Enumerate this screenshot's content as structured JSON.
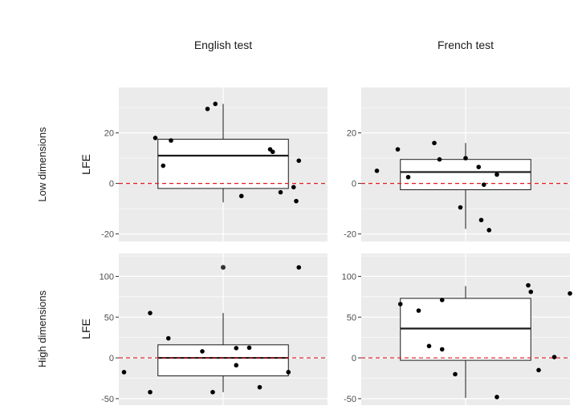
{
  "figure": {
    "col_titles": [
      "English test",
      "French test"
    ],
    "row_titles": [
      "Low dimensions",
      "High dimensions"
    ]
  },
  "colors": {
    "panel_bg": "#ebebeb",
    "grid": "#ffffff",
    "reference_line": "#e31a1c",
    "box_fill": "#ffffff",
    "box_stroke": "#1a1a1a",
    "point": "#000000",
    "outlier": "#333333"
  },
  "chart_data": [
    {
      "type": "boxplot",
      "panel": "English test / Low dimensions",
      "ylabel": "LFE",
      "ylim": [
        -23,
        38
      ],
      "yticks": [
        -20,
        0,
        20
      ],
      "reference_line": 0,
      "box": {
        "q1": -2,
        "median": 11,
        "q3": 17.5,
        "whisker_low": -7.5,
        "whisker_high": 31.5
      },
      "points": [
        {
          "x": 0.74,
          "y": 18
        },
        {
          "x": 0.77,
          "y": 7
        },
        {
          "x": 0.8,
          "y": 17
        },
        {
          "x": 0.94,
          "y": 29.5
        },
        {
          "x": 0.97,
          "y": 31.5
        },
        {
          "x": 1.07,
          "y": -5
        },
        {
          "x": 1.18,
          "y": 13.5
        },
        {
          "x": 1.19,
          "y": 12.5
        },
        {
          "x": 1.22,
          "y": -3.5
        },
        {
          "x": 1.27,
          "y": -1.5
        },
        {
          "x": 1.28,
          "y": -7
        },
        {
          "x": 1.29,
          "y": 9
        }
      ],
      "outliers": [],
      "grid": true
    },
    {
      "type": "boxplot",
      "panel": "French test / Low dimensions",
      "ylabel": "",
      "ylim": [
        -23,
        38
      ],
      "yticks": [
        -20,
        0,
        20
      ],
      "reference_line": 0,
      "box": {
        "q1": -2.5,
        "median": 4.5,
        "q3": 9.5,
        "whisker_low": -18,
        "whisker_high": 16
      },
      "points": [
        {
          "x": 0.66,
          "y": 5
        },
        {
          "x": 0.74,
          "y": 13.5
        },
        {
          "x": 0.78,
          "y": 2.5
        },
        {
          "x": 0.88,
          "y": 16
        },
        {
          "x": 0.9,
          "y": 9.5
        },
        {
          "x": 1.0,
          "y": 10
        },
        {
          "x": 0.98,
          "y": -9.5
        },
        {
          "x": 1.05,
          "y": 6.5
        },
        {
          "x": 1.07,
          "y": -0.5
        },
        {
          "x": 1.06,
          "y": -14.5
        },
        {
          "x": 1.09,
          "y": -18.5
        },
        {
          "x": 1.12,
          "y": 3.5
        }
      ],
      "outliers": [],
      "grid": true
    },
    {
      "type": "boxplot",
      "panel": "English test / High dimensions",
      "ylabel": "LFE",
      "ylim": [
        -58,
        128
      ],
      "yticks": [
        -50,
        0,
        50,
        100
      ],
      "reference_line": 0,
      "box": {
        "q1": -22,
        "median": 0,
        "q3": 16,
        "whisker_low": -42,
        "whisker_high": 55
      },
      "points": [
        {
          "x": 0.62,
          "y": -17.5
        },
        {
          "x": 0.72,
          "y": 55
        },
        {
          "x": 0.72,
          "y": -42
        },
        {
          "x": 0.79,
          "y": 24
        },
        {
          "x": 0.92,
          "y": 8
        },
        {
          "x": 0.96,
          "y": -42
        },
        {
          "x": 1.05,
          "y": 12
        },
        {
          "x": 1.05,
          "y": -9
        },
        {
          "x": 1.1,
          "y": 12.5
        },
        {
          "x": 1.14,
          "y": -36
        },
        {
          "x": 1.25,
          "y": -17.5
        },
        {
          "x": 1.29,
          "y": 111
        }
      ],
      "outliers": [
        {
          "x": 1.0,
          "y": 111
        }
      ],
      "grid": true
    },
    {
      "type": "boxplot",
      "panel": "French test / High dimensions",
      "ylabel": "",
      "ylim": [
        -58,
        128
      ],
      "yticks": [
        -50,
        0,
        50,
        100
      ],
      "reference_line": 0,
      "box": {
        "q1": -3,
        "median": 36,
        "q3": 73,
        "whisker_low": -49,
        "whisker_high": 88
      },
      "points": [
        {
          "x": 0.75,
          "y": 66
        },
        {
          "x": 0.82,
          "y": 58
        },
        {
          "x": 0.86,
          "y": 14.5
        },
        {
          "x": 0.91,
          "y": 71
        },
        {
          "x": 0.91,
          "y": 10.5
        },
        {
          "x": 0.96,
          "y": -20
        },
        {
          "x": 1.12,
          "y": -48
        },
        {
          "x": 1.24,
          "y": 89
        },
        {
          "x": 1.25,
          "y": 81
        },
        {
          "x": 1.28,
          "y": -15
        },
        {
          "x": 1.34,
          "y": 1
        },
        {
          "x": 1.4,
          "y": 79
        }
      ],
      "outliers": [],
      "grid": true
    }
  ]
}
